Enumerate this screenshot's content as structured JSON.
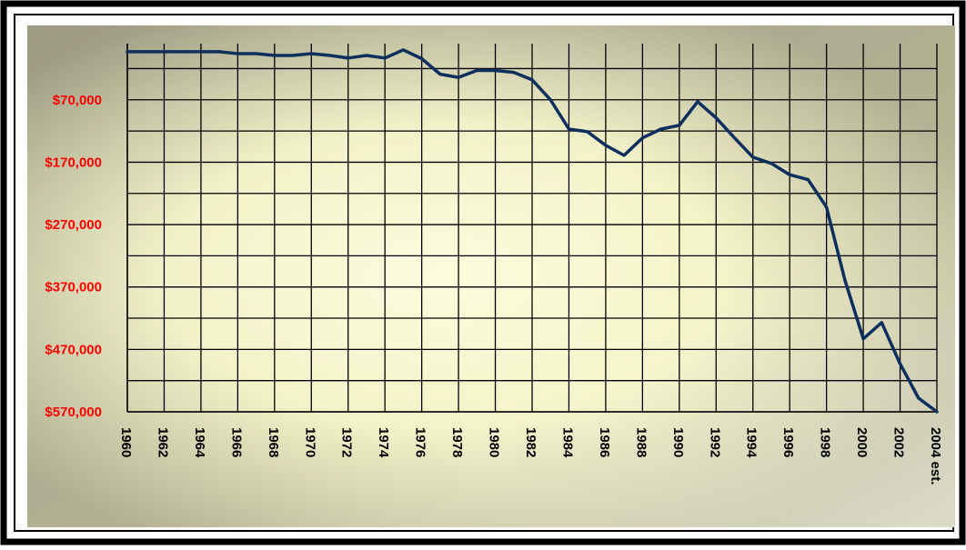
{
  "chart_data": {
    "type": "line",
    "x": [
      1960,
      1961,
      1962,
      1963,
      1964,
      1965,
      1966,
      1967,
      1968,
      1969,
      1970,
      1971,
      1972,
      1973,
      1974,
      1975,
      1976,
      1977,
      1978,
      1979,
      1980,
      1981,
      1982,
      1983,
      1984,
      1985,
      1986,
      1987,
      1988,
      1989,
      1990,
      1991,
      1992,
      1993,
      1994,
      1995,
      1996,
      1997,
      1998,
      1999,
      2000,
      2001,
      2002,
      2003,
      2004
    ],
    "values": [
      -7000,
      -7000,
      -7000,
      -7000,
      -7000,
      -7000,
      -4000,
      -4000,
      -1000,
      -1000,
      -4000,
      -1000,
      3000,
      -1000,
      3000,
      -10000,
      4000,
      29000,
      34000,
      23000,
      23000,
      26000,
      38000,
      70000,
      117000,
      121000,
      143000,
      159000,
      131000,
      117000,
      111000,
      73000,
      99000,
      131000,
      162000,
      172000,
      190000,
      198000,
      242000,
      359000,
      453000,
      427000,
      493000,
      548000,
      570000
    ],
    "color": "#0d2f5e",
    "xlim": [
      1960,
      2004
    ],
    "xticks": [
      1960,
      1962,
      1964,
      1966,
      1968,
      1970,
      1972,
      1974,
      1976,
      1978,
      1980,
      1982,
      1984,
      1986,
      1988,
      1990,
      1992,
      1994,
      1996,
      1998,
      2000,
      2002,
      {
        "value": 2004,
        "label": "2004 est."
      }
    ],
    "ylim": [
      -20000,
      570000
    ],
    "y_reversed": true,
    "yticks": [
      {
        "value": 70000,
        "label": "$70,000"
      },
      {
        "value": 170000,
        "label": "$170,000"
      },
      {
        "value": 270000,
        "label": "$270,000"
      },
      {
        "value": 370000,
        "label": "$370,000"
      },
      {
        "value": 470000,
        "label": "$470,000"
      },
      {
        "value": 570000,
        "label": "$570,000"
      }
    ],
    "minor_yticks": [
      20000,
      120000,
      220000,
      320000,
      420000,
      520000
    ],
    "grid": true
  }
}
